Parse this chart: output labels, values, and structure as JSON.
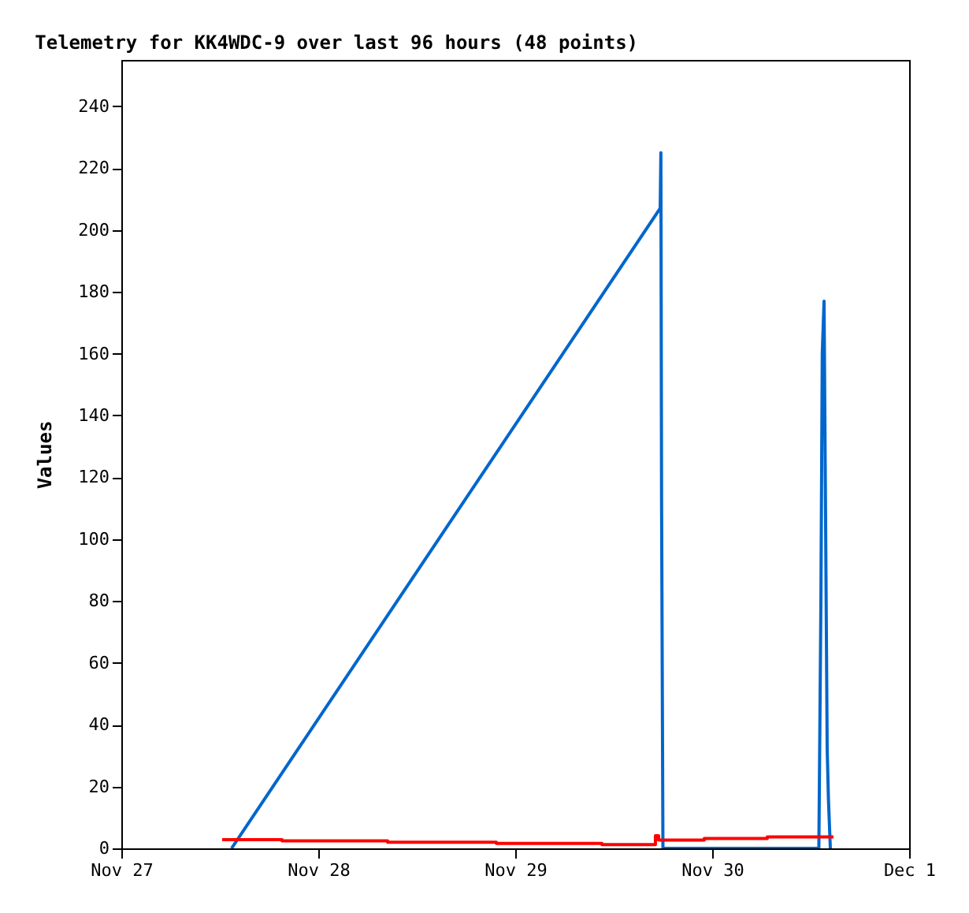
{
  "chart_data": {
    "type": "line",
    "title": "Telemetry for KK4WDC-9 over last 96 hours (48 points)",
    "ylabel": "Values",
    "series": [
      {
        "color": "#0066cc",
        "x": [
          "--11-27T13:26",
          "--11-29T17:40",
          "--11-29T17:45",
          "--11-29T17:50",
          "--11-29T18:00",
          "--11-30T13:00",
          "--11-30T13:15",
          "--11-30T13:25",
          "--11-30T13:38",
          "--11-30T14:01",
          "--11-30T14:10",
          "--11-30T14:24"
        ],
        "values": [
          0,
          207,
          225,
          113,
          0,
          0,
          80,
          160,
          177,
          32,
          16,
          0
        ]
      },
      {
        "color": "#ff0000",
        "type": "step",
        "x": [
          "--11-27T12:17",
          "--11-27T19:35",
          "--11-28T08:27",
          "--11-28T21:42",
          "--11-29T10:34",
          "--11-29T17:05",
          "--11-29T17:28",
          "--11-29T23:02",
          "--11-30T06:43",
          "--11-30T14:47"
        ],
        "values": [
          2.8,
          2.4,
          2.0,
          1.6,
          1.2,
          4.1,
          2.7,
          3.2,
          3.7,
          3.7
        ]
      }
    ],
    "xlim": [
      "--11-27",
      "--12-01"
    ],
    "xticks": [
      {
        "value": "--11-27",
        "label": "Nov 27"
      },
      {
        "value": "--11-28",
        "label": "Nov 28"
      },
      {
        "value": "--11-29",
        "label": "Nov 29"
      },
      {
        "value": "--11-30",
        "label": "Nov 30"
      },
      {
        "value": "--12-01",
        "label": "Dec 1"
      }
    ],
    "ylim": [
      0,
      255
    ],
    "yticks": [
      0,
      20,
      40,
      60,
      80,
      100,
      120,
      140,
      160,
      180,
      200,
      220,
      240
    ],
    "grid": false
  }
}
